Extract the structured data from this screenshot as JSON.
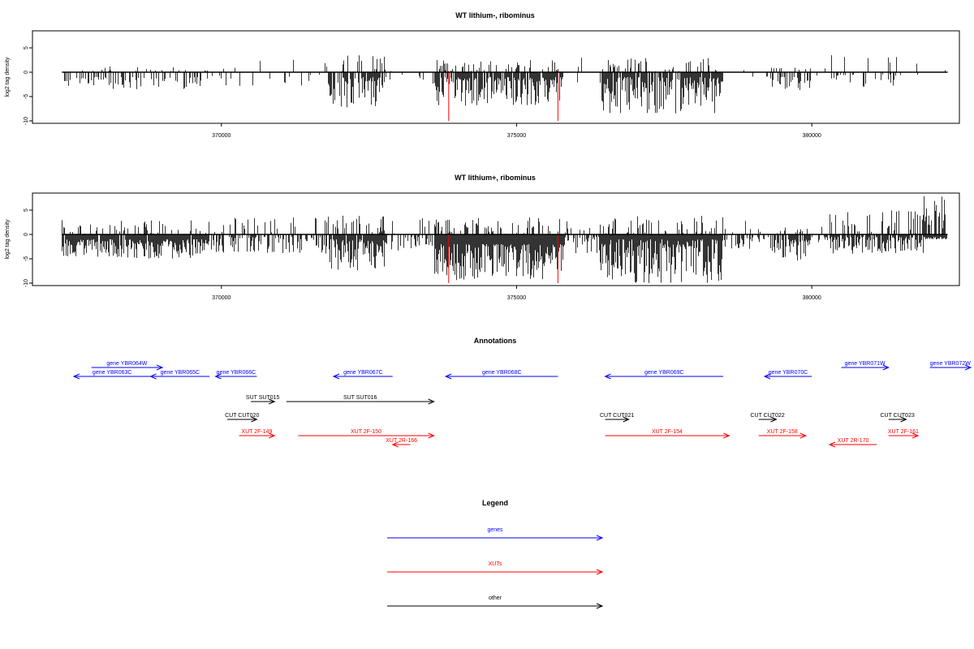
{
  "colors": {
    "genes": "#0000ff",
    "xuts": "#ff0000",
    "other": "#000000",
    "signal": "#000000",
    "highlight": "#ff0000"
  },
  "chart_data": [
    {
      "type": "bar",
      "title": "WT lithium-, ribominus",
      "ylabel": "log2 tag density",
      "xlim": [
        366800,
        382500
      ],
      "ylim": [
        -10.5,
        8.5
      ],
      "yticks": [
        "-10",
        "-5",
        "0",
        "5"
      ],
      "xticks": [
        "370000",
        "375000",
        "380000"
      ],
      "plot_range": [
        367300,
        382300
      ],
      "highlight_positions": [
        373850,
        375700
      ],
      "highlight_depth": -10,
      "regions": [
        {
          "from": 367300,
          "to": 369800,
          "density": 0.35,
          "neg": [
            -1,
            -3.5
          ],
          "pos": [
            0,
            1.2
          ]
        },
        {
          "from": 369800,
          "to": 371800,
          "density": 0.08,
          "neg": [
            -0.5,
            -3
          ],
          "pos": [
            0,
            3
          ]
        },
        {
          "from": 371800,
          "to": 372800,
          "density": 0.8,
          "neg": [
            -1,
            -7.5
          ],
          "pos": [
            0,
            3.5
          ]
        },
        {
          "from": 372800,
          "to": 373600,
          "density": 0.1,
          "neg": [
            -0.5,
            -3
          ],
          "pos": [
            0,
            2.5
          ]
        },
        {
          "from": 373600,
          "to": 375800,
          "density": 0.9,
          "neg": [
            -1,
            -7
          ],
          "pos": [
            0,
            2.5
          ]
        },
        {
          "from": 375800,
          "to": 376400,
          "density": 0.1,
          "neg": [
            -0.5,
            -2.5
          ],
          "pos": [
            0,
            3
          ]
        },
        {
          "from": 376400,
          "to": 378500,
          "density": 0.9,
          "neg": [
            -1,
            -8.5
          ],
          "pos": [
            0,
            3
          ]
        },
        {
          "from": 378500,
          "to": 379300,
          "density": 0.05,
          "neg": [
            -0.5,
            -2
          ],
          "pos": [
            0,
            1.5
          ]
        },
        {
          "from": 379300,
          "to": 380000,
          "density": 0.55,
          "neg": [
            -1,
            -3.8
          ],
          "pos": [
            0,
            1
          ]
        },
        {
          "from": 380000,
          "to": 380300,
          "density": 0.05,
          "neg": [
            -0.5,
            -1
          ],
          "pos": [
            0,
            1
          ]
        },
        {
          "from": 380300,
          "to": 381500,
          "density": 0.25,
          "neg": [
            -0.5,
            -3
          ],
          "pos": [
            0,
            4
          ]
        },
        {
          "from": 381500,
          "to": 382300,
          "density": 0.06,
          "neg": [
            -0.5,
            -1
          ],
          "pos": [
            0,
            3.8
          ]
        }
      ]
    },
    {
      "type": "bar",
      "title": "WT lithium+, ribominus",
      "ylabel": "log2 tag density",
      "xlim": [
        366800,
        382500
      ],
      "ylim": [
        -10.5,
        8.5
      ],
      "yticks": [
        "-10",
        "-5",
        "0",
        "5"
      ],
      "xticks": [
        "370000",
        "375000",
        "380000"
      ],
      "plot_range": [
        367300,
        382300
      ],
      "highlight_positions": [
        373850,
        375700
      ],
      "highlight_depth": -10,
      "regions": [
        {
          "from": 367300,
          "to": 369800,
          "density": 0.95,
          "neg": [
            -1,
            -5
          ],
          "pos": [
            0,
            3
          ]
        },
        {
          "from": 369800,
          "to": 371800,
          "density": 0.5,
          "neg": [
            -0.5,
            -4
          ],
          "pos": [
            0,
            4
          ]
        },
        {
          "from": 371800,
          "to": 372800,
          "density": 0.9,
          "neg": [
            -1,
            -7.5
          ],
          "pos": [
            0,
            4
          ]
        },
        {
          "from": 372800,
          "to": 373600,
          "density": 0.4,
          "neg": [
            -0.5,
            -4
          ],
          "pos": [
            0,
            4
          ]
        },
        {
          "from": 373600,
          "to": 375800,
          "density": 1.0,
          "neg": [
            -2,
            -9.5
          ],
          "pos": [
            0,
            3.5
          ]
        },
        {
          "from": 375800,
          "to": 376400,
          "density": 0.5,
          "neg": [
            -0.5,
            -4
          ],
          "pos": [
            0,
            3
          ]
        },
        {
          "from": 376400,
          "to": 378500,
          "density": 1.0,
          "neg": [
            -1,
            -10
          ],
          "pos": [
            0,
            4
          ]
        },
        {
          "from": 378500,
          "to": 379300,
          "density": 0.3,
          "neg": [
            -0.5,
            -3
          ],
          "pos": [
            0,
            3
          ]
        },
        {
          "from": 379300,
          "to": 380000,
          "density": 0.75,
          "neg": [
            -1,
            -5.5
          ],
          "pos": [
            0,
            2
          ]
        },
        {
          "from": 380000,
          "to": 380300,
          "density": 0.3,
          "neg": [
            -0.5,
            -2
          ],
          "pos": [
            0,
            3
          ]
        },
        {
          "from": 380300,
          "to": 381900,
          "density": 0.8,
          "neg": [
            -0.5,
            -4
          ],
          "pos": [
            0,
            5
          ]
        },
        {
          "from": 381900,
          "to": 382300,
          "density": 1.0,
          "neg": [
            -0.5,
            -1
          ],
          "pos": [
            1,
            8
          ]
        }
      ]
    }
  ],
  "annotations": {
    "title": "Annotations",
    "xlim": [
      366800,
      382500
    ],
    "features": [
      {
        "label": "gene YBR063C",
        "type": "gene",
        "start": 367500,
        "end": 368800,
        "strand": "-",
        "row": 0
      },
      {
        "label": "gene YBR064W",
        "type": "gene",
        "start": 367800,
        "end": 369000,
        "strand": "+",
        "row": -1
      },
      {
        "label": "gene YBR065C",
        "type": "gene",
        "start": 368800,
        "end": 369800,
        "strand": "-",
        "row": 0
      },
      {
        "label": "gene YBR066C",
        "type": "gene",
        "start": 369900,
        "end": 370600,
        "strand": "-",
        "row": 0
      },
      {
        "label": "gene YBR067C",
        "type": "gene",
        "start": 371900,
        "end": 372900,
        "strand": "-",
        "row": 0
      },
      {
        "label": "gene YBR068C",
        "type": "gene",
        "start": 373800,
        "end": 375700,
        "strand": "-",
        "row": 0
      },
      {
        "label": "gene YBR069C",
        "type": "gene",
        "start": 376500,
        "end": 378500,
        "strand": "-",
        "row": 0
      },
      {
        "label": "gene YBR070C",
        "type": "gene",
        "start": 379200,
        "end": 380000,
        "strand": "-",
        "row": 0
      },
      {
        "label": "gene YBR071W",
        "type": "gene",
        "start": 380500,
        "end": 381300,
        "strand": "+",
        "row": -1
      },
      {
        "label": "gene YBR072W",
        "type": "gene",
        "start": 382000,
        "end": 382800,
        "strand": "+",
        "row": -1
      },
      {
        "label": "SUT SUT015",
        "type": "other",
        "start": 370500,
        "end": 370900,
        "strand": "+",
        "row": 1
      },
      {
        "label": "SUT SUT016",
        "type": "other",
        "start": 371100,
        "end": 373600,
        "strand": "+",
        "row": 1
      },
      {
        "label": "CUT CUT020",
        "type": "other",
        "start": 370100,
        "end": 370600,
        "strand": "+",
        "row": 2
      },
      {
        "label": "CUT CUT021",
        "type": "other",
        "start": 376500,
        "end": 376900,
        "strand": "+",
        "row": 2
      },
      {
        "label": "CUT CUT022",
        "type": "other",
        "start": 379100,
        "end": 379400,
        "strand": "+",
        "row": 2
      },
      {
        "label": "CUT CUT023",
        "type": "other",
        "start": 381300,
        "end": 381600,
        "strand": "+",
        "row": 2
      },
      {
        "label": "XUT 2F-149",
        "type": "xut",
        "start": 370300,
        "end": 370900,
        "strand": "+",
        "row": 3
      },
      {
        "label": "XUT 2F-150",
        "type": "xut",
        "start": 371300,
        "end": 373600,
        "strand": "+",
        "row": 3
      },
      {
        "label": "XUT 2R-166",
        "type": "xut",
        "start": 372900,
        "end": 373200,
        "strand": "-",
        "row": 3.6
      },
      {
        "label": "XUT 2F-154",
        "type": "xut",
        "start": 376500,
        "end": 378600,
        "strand": "+",
        "row": 3
      },
      {
        "label": "XUT 2F-158",
        "type": "xut",
        "start": 379100,
        "end": 379900,
        "strand": "+",
        "row": 3
      },
      {
        "label": "XUT 2R-170",
        "type": "xut",
        "start": 380300,
        "end": 381100,
        "strand": "-",
        "row": 3.6
      },
      {
        "label": "XUT 2F-161",
        "type": "xut",
        "start": 381300,
        "end": 381800,
        "strand": "+",
        "row": 3
      }
    ]
  },
  "legend": {
    "title": "Legend",
    "items": [
      {
        "label": "genes",
        "type": "gene"
      },
      {
        "label": "XUTs",
        "type": "xut"
      },
      {
        "label": "other",
        "type": "other"
      }
    ]
  }
}
